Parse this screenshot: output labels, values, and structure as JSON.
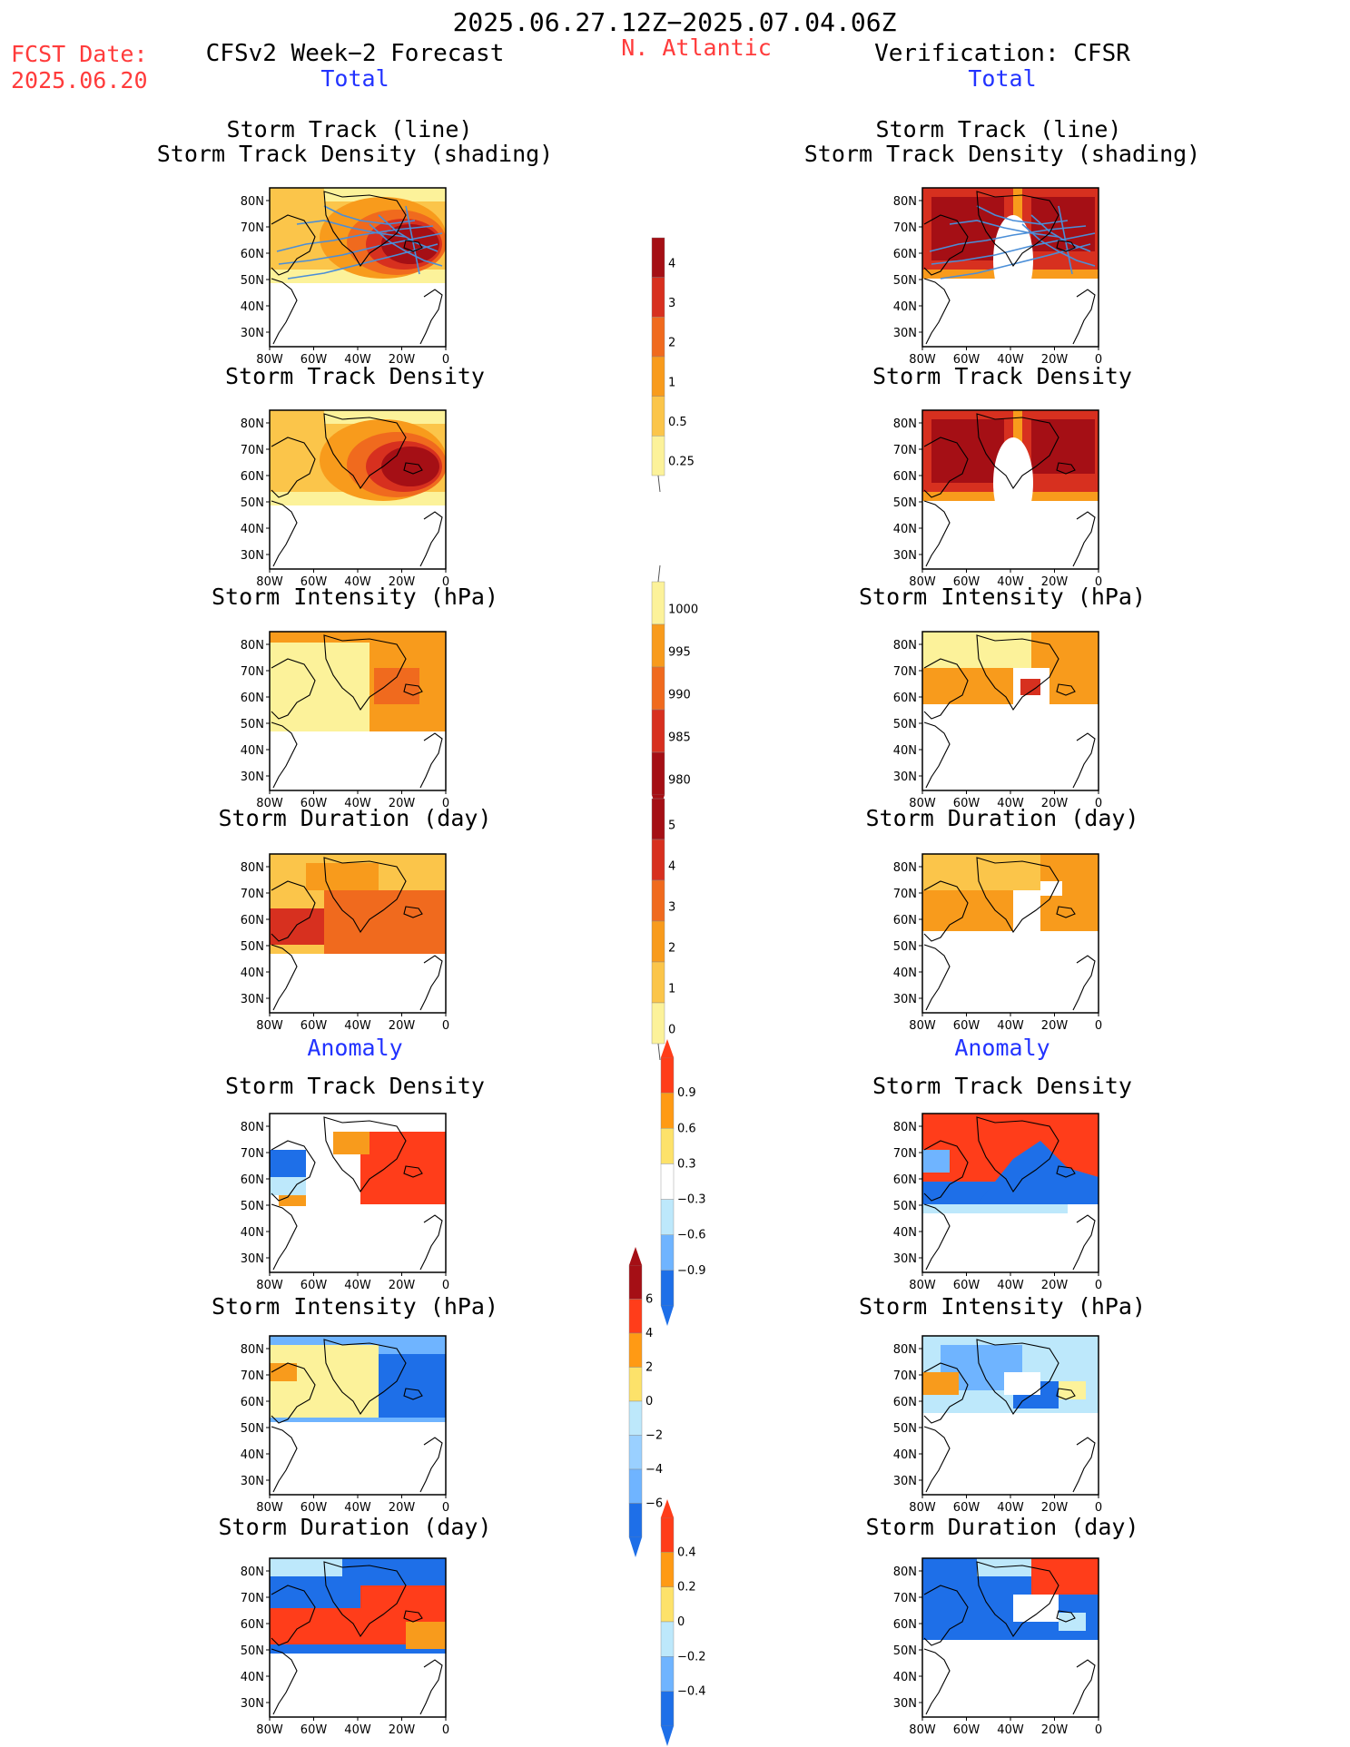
{
  "header": {
    "date_range": "2025.06.27.12Z−2025.07.04.06Z",
    "fcst_label": "FCST Date:",
    "fcst_date": "2025.06.20",
    "region": "N. Atlantic",
    "left_title": "CFSv2 Week−2 Forecast",
    "right_title": "Verification: CFSR",
    "left_total": "Total",
    "right_total": "Total",
    "left_anomaly": "Anomaly",
    "right_anomaly": "Anomaly"
  },
  "panel_titles": {
    "track_line": "Storm Track (line)",
    "track_density_shading": "Storm Track Density (shading)",
    "track_density": "Storm Track Density",
    "intensity": "Storm Intensity (hPa)",
    "duration": "Storm Duration (day)"
  },
  "axes": {
    "lat_labels": [
      "80N",
      "70N",
      "60N",
      "50N",
      "40N",
      "30N"
    ],
    "lon_labels": [
      "80W",
      "60W",
      "40W",
      "20W",
      "0"
    ]
  },
  "colorbars": [
    {
      "id": "density",
      "labels": [
        "4",
        "3",
        "2",
        "1",
        "0.5",
        "0.25"
      ],
      "colors": [
        "#a50f15",
        "#d7301f",
        "#f06a1e",
        "#f89b1c",
        "#fbc54a",
        "#fcf29a"
      ]
    },
    {
      "id": "intensity",
      "labels": [
        "1000",
        "995",
        "990",
        "985",
        "980"
      ],
      "colors": [
        "#fcf29a",
        "#f89b1c",
        "#f06a1e",
        "#d7301f",
        "#a50f15"
      ]
    },
    {
      "id": "duration",
      "labels": [
        "5",
        "4",
        "3",
        "2",
        "1",
        "0"
      ],
      "colors": [
        "#a50f15",
        "#d7301f",
        "#f06a1e",
        "#f89b1c",
        "#fbc54a",
        "#fcf29a"
      ]
    },
    {
      "id": "density_anom",
      "labels": [
        "0.9",
        "0.6",
        "0.3",
        "−0.3",
        "−0.6",
        "−0.9"
      ],
      "colors": [
        "#ff3d1a",
        "#ff9a14",
        "#fde26a",
        "#ffffff",
        "#bde8fb",
        "#6fb4ff",
        "#1e6fe8"
      ]
    },
    {
      "id": "intensity_anom",
      "labels": [
        "6",
        "4",
        "2",
        "0",
        "−2",
        "−4",
        "−6"
      ],
      "colors": [
        "#a50f15",
        "#ff3d1a",
        "#ff9a14",
        "#fde26a",
        "#bde8fb",
        "#9ad0ff",
        "#6fb4ff",
        "#1e6fe8"
      ]
    },
    {
      "id": "duration_anom",
      "labels": [
        "0.4",
        "0.2",
        "0",
        "−0.2",
        "−0.4"
      ],
      "colors": [
        "#ff3d1a",
        "#ff9a14",
        "#fde26a",
        "#bde8fb",
        "#6fb4ff",
        "#1e6fe8"
      ]
    }
  ],
  "palette": {
    "pale": "#fcf29a",
    "light": "#fbc54a",
    "orange": "#f89b1c",
    "deep": "#f06a1e",
    "red": "#d7301f",
    "dark": "#a50f15",
    "ltblue": "#bde8fb",
    "midblue": "#6fb4ff",
    "blue": "#1e6fe8",
    "track_line": "#4a8ed8"
  },
  "panels": [
    {
      "row": 0,
      "side": "left",
      "kind": "track",
      "fill": "pale"
    },
    {
      "row": 0,
      "side": "right",
      "kind": "track",
      "fill": "obs"
    },
    {
      "row": 1,
      "side": "left",
      "kind": "density",
      "fill": "pale"
    },
    {
      "row": 1,
      "side": "right",
      "kind": "density",
      "fill": "obs"
    },
    {
      "row": 2,
      "side": "left",
      "kind": "intensity",
      "fill": "pale"
    },
    {
      "row": 2,
      "side": "right",
      "kind": "intensity",
      "fill": "obs"
    },
    {
      "row": 3,
      "side": "left",
      "kind": "duration",
      "fill": "pale"
    },
    {
      "row": 3,
      "side": "right",
      "kind": "duration",
      "fill": "obs"
    },
    {
      "row": 4,
      "side": "left",
      "kind": "density_anom",
      "fill": "anom"
    },
    {
      "row": 4,
      "side": "right",
      "kind": "density_anom",
      "fill": "anom"
    },
    {
      "row": 5,
      "side": "left",
      "kind": "intensity_anom",
      "fill": "anom"
    },
    {
      "row": 5,
      "side": "right",
      "kind": "intensity_anom",
      "fill": "anom"
    },
    {
      "row": 6,
      "side": "left",
      "kind": "duration_anom",
      "fill": "anom"
    },
    {
      "row": 6,
      "side": "right",
      "kind": "duration_anom",
      "fill": "anom"
    }
  ]
}
